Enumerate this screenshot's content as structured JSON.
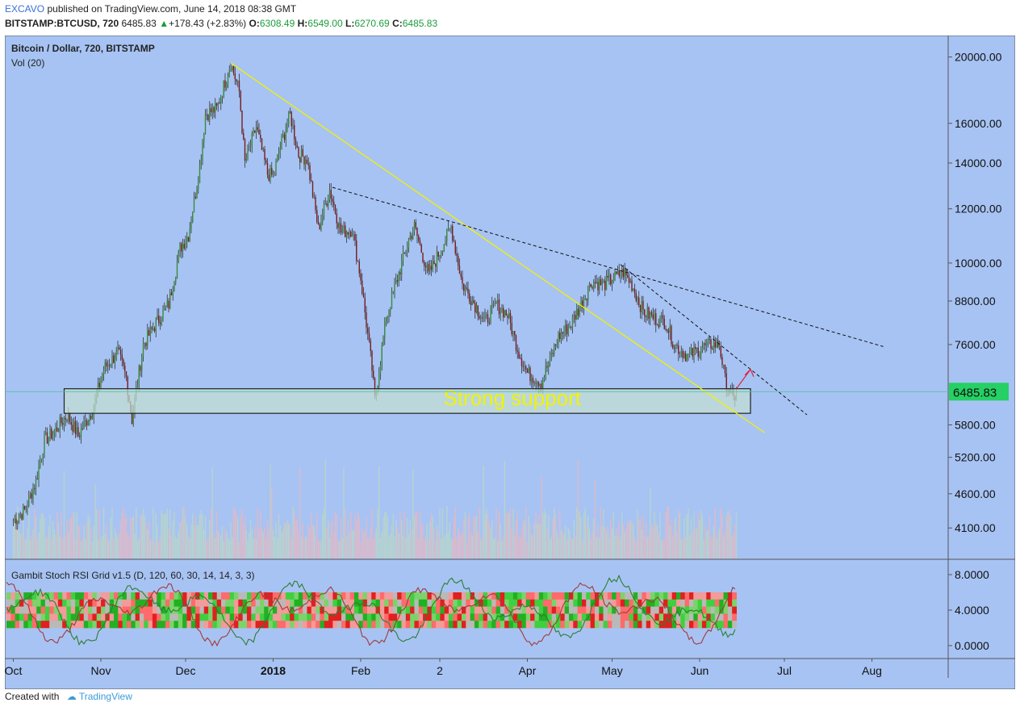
{
  "header": {
    "author": "EXCAVO",
    "published_text": "published on TradingView.com, June 14, 2018 08:38 GMT",
    "symbol": "BITSTAMP:BTCUSD, 720",
    "last_price": "6485.83",
    "change": "+178.43 (+2.83%)",
    "o_label": "O:",
    "o_value": "6308.49",
    "h_label": "H:",
    "h_value": "6549.00",
    "l_label": "L:",
    "l_value": "6270.69",
    "c_label": "C:",
    "c_value": "6485.83"
  },
  "footer": {
    "created_with": "Created with",
    "brand": "TradingView"
  },
  "colors": {
    "plot_bg": "#a7c3f3",
    "candle_up": "#3a8a3a",
    "candle_down": "#7a1c1c",
    "trendline": "#f2f200",
    "support_fill": "#c4e0d2",
    "price_tag": "#25d064",
    "rsi_line_up": "#2e7d32",
    "rsi_line_down": "#a23a3a",
    "arrow": "#e0203a"
  },
  "chart_data": {
    "type": "candlestick",
    "title": "Bitcoin / Dollar, 720, BITSTAMP",
    "volume_label": "Vol (20)",
    "indicator_label": "Gambit Stoch RSI Grid v1.5 (D, 120, 60, 30, 14, 14, 3, 3)",
    "y_scale": "log",
    "ylim": [
      3700,
      21500
    ],
    "y_ticks": [
      "20000.00",
      "16000.00",
      "14000.00",
      "12000.00",
      "10000.00",
      "8800.00",
      "7600.00",
      "5800.00",
      "5200.00",
      "4600.00",
      "4100.00"
    ],
    "last_price_label": "6485.83",
    "x_ticks": [
      "Oct",
      "Nov",
      "Dec",
      "2018",
      "Feb",
      "2",
      "Apr",
      "May",
      "Jun",
      "Jul",
      "Aug"
    ],
    "indicator_ticks": [
      "8.0000",
      "4.0000",
      "0.0000"
    ],
    "price_path": [
      [
        "2017-10-01",
        4200
      ],
      [
        "2017-10-05",
        4350
      ],
      [
        "2017-10-09",
        4800
      ],
      [
        "2017-10-12",
        5500
      ],
      [
        "2017-10-16",
        5700
      ],
      [
        "2017-10-20",
        6000
      ],
      [
        "2017-10-24",
        5600
      ],
      [
        "2017-10-29",
        6100
      ],
      [
        "2017-11-02",
        7000
      ],
      [
        "2017-11-07",
        7400
      ],
      [
        "2017-11-10",
        6800
      ],
      [
        "2017-11-12",
        5900
      ],
      [
        "2017-11-16",
        7600
      ],
      [
        "2017-11-20",
        8100
      ],
      [
        "2017-11-25",
        8700
      ],
      [
        "2017-11-29",
        10500
      ],
      [
        "2017-12-02",
        11000
      ],
      [
        "2017-12-06",
        13800
      ],
      [
        "2017-12-08",
        16500
      ],
      [
        "2017-12-12",
        16800
      ],
      [
        "2017-12-17",
        19600
      ],
      [
        "2017-12-20",
        17800
      ],
      [
        "2017-12-22",
        14000
      ],
      [
        "2017-12-26",
        15800
      ],
      [
        "2017-12-30",
        13500
      ],
      [
        "2018-01-01",
        13400
      ],
      [
        "2018-01-04",
        15000
      ],
      [
        "2018-01-07",
        16500
      ],
      [
        "2018-01-10",
        14400
      ],
      [
        "2018-01-13",
        14200
      ],
      [
        "2018-01-17",
        11200
      ],
      [
        "2018-01-21",
        12800
      ],
      [
        "2018-01-25",
        11100
      ],
      [
        "2018-01-29",
        11200
      ],
      [
        "2018-02-01",
        9500
      ],
      [
        "2018-02-05",
        7000
      ],
      [
        "2018-02-06",
        6300
      ],
      [
        "2018-02-10",
        8300
      ],
      [
        "2018-02-14",
        9500
      ],
      [
        "2018-02-18",
        10800
      ],
      [
        "2018-02-20",
        11300
      ],
      [
        "2018-02-25",
        9600
      ],
      [
        "2018-03-01",
        10400
      ],
      [
        "2018-03-05",
        11300
      ],
      [
        "2018-03-09",
        9300
      ],
      [
        "2018-03-12",
        8900
      ],
      [
        "2018-03-17",
        8200
      ],
      [
        "2018-03-21",
        8700
      ],
      [
        "2018-03-25",
        8400
      ],
      [
        "2018-03-29",
        7400
      ],
      [
        "2018-04-01",
        6900
      ],
      [
        "2018-04-06",
        6700
      ],
      [
        "2018-04-12",
        7800
      ],
      [
        "2018-04-16",
        8100
      ],
      [
        "2018-04-20",
        8700
      ],
      [
        "2018-04-24",
        9400
      ],
      [
        "2018-04-28",
        9300
      ],
      [
        "2018-05-05",
        9700
      ],
      [
        "2018-05-08",
        9300
      ],
      [
        "2018-05-12",
        8500
      ],
      [
        "2018-05-16",
        8300
      ],
      [
        "2018-05-20",
        8200
      ],
      [
        "2018-05-23",
        7600
      ],
      [
        "2018-05-28",
        7300
      ],
      [
        "2018-06-01",
        7500
      ],
      [
        "2018-06-05",
        7600
      ],
      [
        "2018-06-08",
        7600
      ],
      [
        "2018-06-10",
        6750
      ],
      [
        "2018-06-13",
        6300
      ],
      [
        "2018-06-14",
        6485.83
      ]
    ],
    "annotations": [
      {
        "type": "label",
        "text": "Strong support"
      },
      {
        "type": "zone",
        "name": "support",
        "y_range": [
          6030,
          6550
        ],
        "x_range": [
          "2017-10-19",
          "2018-06-19"
        ]
      },
      {
        "type": "trendline",
        "style": "solid",
        "from": [
          "2017-12-17",
          19600
        ],
        "to": [
          "2018-06-24",
          5650
        ]
      },
      {
        "type": "trendline",
        "style": "dashed",
        "from": [
          "2018-01-22",
          12900
        ],
        "to": [
          "2018-08-05",
          7550
        ]
      },
      {
        "type": "trendline",
        "style": "dashed",
        "from": [
          "2018-05-04",
          9950
        ],
        "to": [
          "2018-07-09",
          6000
        ]
      },
      {
        "type": "arrow",
        "from": [
          "2018-06-14",
          6550
        ],
        "to": [
          "2018-06-19",
          6990
        ]
      }
    ]
  }
}
